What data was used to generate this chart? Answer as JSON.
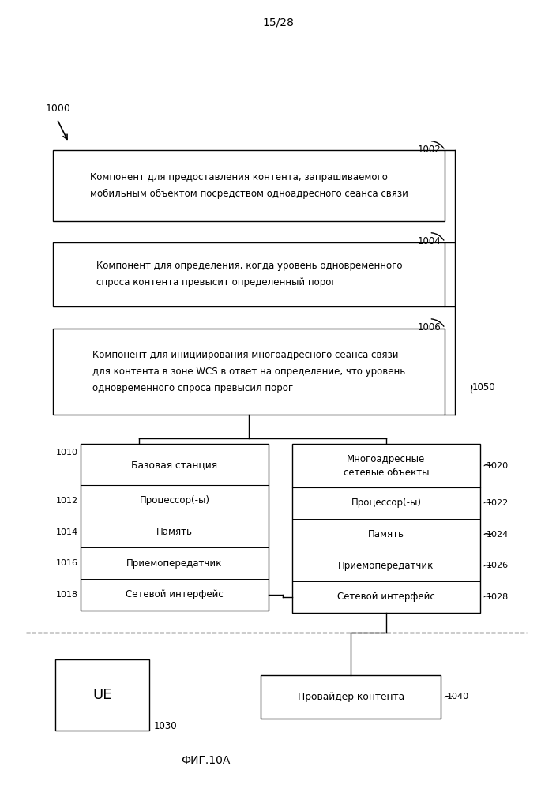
{
  "page_label": "15/28",
  "fig_label": "ФИГ.10А",
  "bg_color": "#ffffff",
  "label_1000": "1000",
  "box1_label": "1002",
  "box1_text": "Компонент для предоставления контента, запрашиваемого\nмобильным объектом посредством одноадресного сеанса связи",
  "box2_label": "1004",
  "box2_text": "Компонент для определения, когда уровень одновременного\nспроса контента превысит определенный порог",
  "box3_label": "1006",
  "box3_text": "Компонент для инициирования многоадресного сеанса связи\nдля контента в зоне WCS в ответ на определение, что уровень\nодновременного спроса превысил порог",
  "bracket_label": "1050",
  "left_title": "Базовая станция",
  "left_label": "1010",
  "left_rows": [
    "Процессор(-ы)",
    "Память",
    "Приемопередатчик",
    "Сетевой интерфейс"
  ],
  "left_row_labels": [
    "1012",
    "1014",
    "1016",
    "1018"
  ],
  "right_title": "Многоадресные\nсетевые объекты",
  "right_label": "1020",
  "right_rows": [
    "Процессор(-ы)",
    "Память",
    "Приемопередатчик",
    "Сетевой интерфейс"
  ],
  "right_row_labels": [
    "1022",
    "1024",
    "1026",
    "1028"
  ],
  "ue_text": "UE",
  "ue_label": "1030",
  "provider_text": "Провайдер контента",
  "provider_label": "1040"
}
